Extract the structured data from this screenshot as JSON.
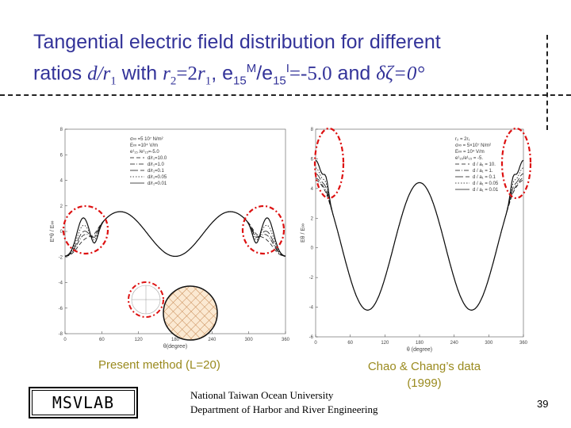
{
  "title": {
    "line1": "Tangential electric field distribution for different",
    "line2_prefix": "ratios ",
    "ratio_d": "d/r",
    "sub1": "1",
    "with": " with ",
    "r2": "r",
    "sub2": "2",
    "eq": "=2",
    "r1": "r",
    "sub1b": "1",
    "comma": ", e",
    "sub15a": "15",
    "supM": "M",
    "slash_e": "/e",
    "sub15b": "15",
    "supI": "I",
    "val": "=-5.0",
    "and": " and ",
    "angle": "δζ=0°"
  },
  "captions": {
    "left": "Present method (L=20)",
    "right": "Chao & Chang’s data (1999)"
  },
  "logo": "MSVLAB",
  "footer": {
    "line1": "National Taiwan Ocean University",
    "line2": "Department of Harbor and River Engineering"
  },
  "page_number": "39",
  "colors": {
    "title": "#333399",
    "caption": "#9a8a1e",
    "highlight": "#dd1111"
  },
  "chart_data": [
    {
      "type": "line",
      "xlabel": "θ(degree)",
      "ylabel": "E*θ / E∞",
      "xlim": [
        0,
        360
      ],
      "ylim": [
        -8,
        8
      ],
      "x_ticks": [
        0,
        60,
        120,
        180,
        240,
        300,
        360
      ],
      "y_ticks": [
        -8,
        -6,
        -4,
        -2,
        0,
        2,
        4,
        6,
        8
      ],
      "legend_position": "top-left",
      "legend_header": [
        "σ∞ =5 10⁷ N/m²",
        "E∞ =10⁴ V/m",
        "e¹₁₅ /e¹₁₅=-5.0"
      ],
      "series": [
        {
          "name": "d/r₁=10.0",
          "style": "dash",
          "amp": 1.75,
          "peak": 0.4
        },
        {
          "name": "d/r₁=1.0",
          "style": "dashdot",
          "amp": 1.75,
          "peak": 0.8
        },
        {
          "name": "d/r₁=0.1",
          "style": "longdash",
          "amp": 1.75,
          "peak": 1.1
        },
        {
          "name": "d/r₁=0.05",
          "style": "dot",
          "amp": 1.75,
          "peak": 1.6
        },
        {
          "name": "d/r₁=0.01",
          "style": "solid",
          "amp": 1.75,
          "peak": 2.2
        }
      ]
    },
    {
      "type": "line",
      "xlabel": "θ (degree)",
      "ylabel": "Eθ / E∞",
      "xlim": [
        0,
        360
      ],
      "ylim": [
        -6,
        8
      ],
      "x_ticks": [
        0,
        60,
        120,
        180,
        240,
        300,
        360
      ],
      "y_ticks": [
        -6,
        -4,
        -2,
        0,
        2,
        4,
        6,
        8
      ],
      "legend_position": "top-right",
      "legend_header": [
        "r₂ = 2r₁",
        "σ∞ = 5×10⁷ N/m²",
        "E∞ = 10⁴ V/m",
        "e¹₁₅/e¹₁₅ = -5."
      ],
      "series": [
        {
          "name": "d / a₁ = 10.",
          "style": "dash",
          "base": 4.3,
          "peak": 0.3
        },
        {
          "name": "d / a₁ = 1.",
          "style": "dashdot",
          "base": 4.3,
          "peak": 0.6
        },
        {
          "name": "d / a₁ = 0.1",
          "style": "longdash",
          "base": 4.3,
          "peak": 1.2
        },
        {
          "name": "d / a₁ = 0.05",
          "style": "dot",
          "base": 4.3,
          "peak": 2.0
        },
        {
          "name": "d / a₁ = 0.01",
          "style": "solid",
          "base": 4.3,
          "peak": 3.0
        }
      ]
    }
  ]
}
